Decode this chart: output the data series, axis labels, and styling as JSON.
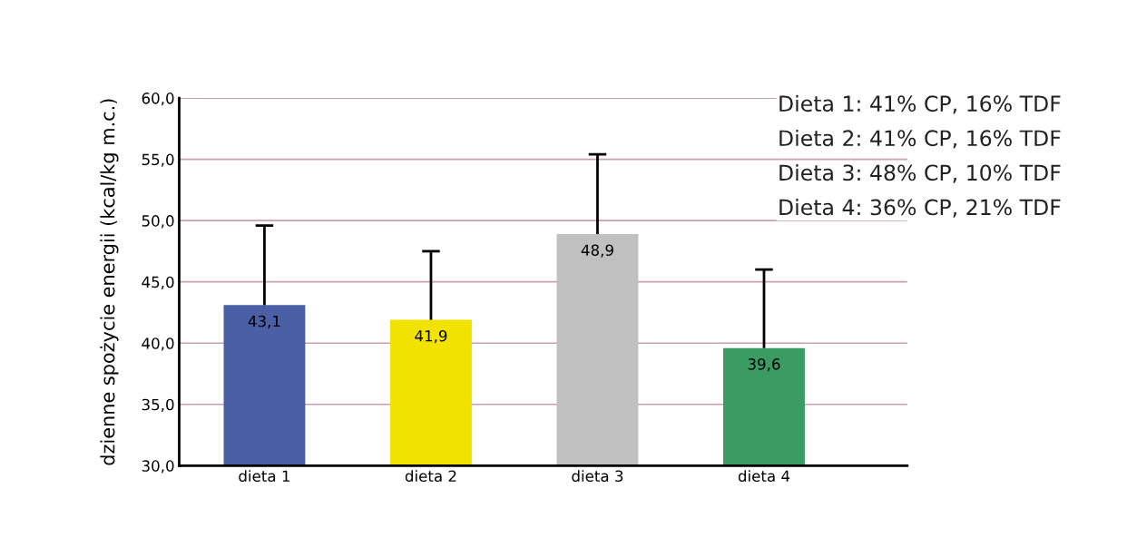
{
  "chart_data": {
    "type": "bar",
    "ylabel": "dzienne spożycie energii (kcal/kg m.c.)",
    "categories": [
      "dieta 1",
      "dieta 2",
      "dieta 3",
      "dieta 4"
    ],
    "values": [
      43.1,
      41.9,
      48.9,
      39.6
    ],
    "colors": [
      "#4a5fa5",
      "#f2e200",
      "#c0c0c0",
      "#3a9c62"
    ],
    "errors": [
      [
        43.1,
        49.6
      ],
      [
        41.9,
        47.5
      ],
      [
        48.9,
        55.4
      ],
      [
        39.6,
        46.0
      ]
    ],
    "value_labels": [
      "43,1",
      "41,9",
      "48,9",
      "39,6"
    ],
    "ylim": [
      30,
      60
    ],
    "yticks": [
      {
        "value": 30,
        "label": "30,0"
      },
      {
        "value": 35,
        "label": "35,0"
      },
      {
        "value": 40,
        "label": "40,0"
      },
      {
        "value": 45,
        "label": "45,0"
      },
      {
        "value": 50,
        "label": "50,0"
      },
      {
        "value": 55,
        "label": "55,0"
      },
      {
        "value": 60,
        "label": "60,0"
      }
    ],
    "grid": "y",
    "annotations": [
      "Dieta 1: 41% CP, 16% TDF",
      "Dieta 2: 41% CP, 16% TDF",
      "Dieta 3: 48% CP, 10% TDF",
      "Dieta 4: 36% CP, 21% TDF"
    ]
  }
}
